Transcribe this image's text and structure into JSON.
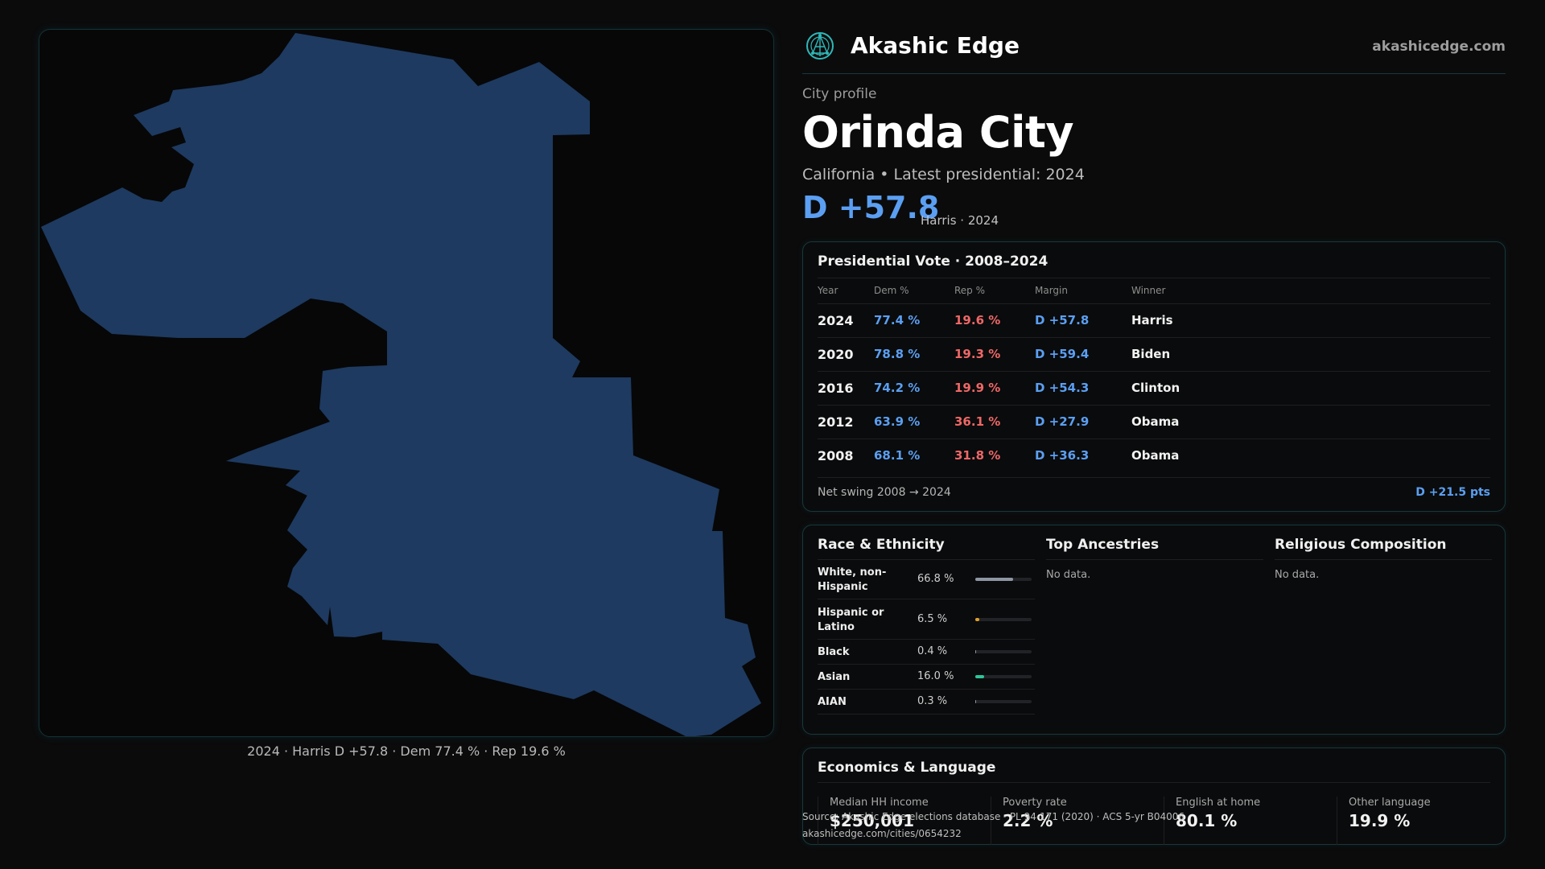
{
  "map": {
    "caption": "2024 · Harris D +57.8 · Dem 77.4 % · Rep 19.6 %",
    "fill_color": "#1e3a60"
  },
  "brand": {
    "name": "Akashic Edge",
    "url": "akashicedge.com",
    "logo_icon": "globe-network-icon"
  },
  "header": {
    "eyebrow": "City profile",
    "title": "Orinda City",
    "subline": "California • Latest presidential: 2024",
    "margin": "D +57.8",
    "margin_note": "Harris · 2024"
  },
  "vote": {
    "title": "Presidential Vote · 2008–2024",
    "columns": [
      "Year",
      "Dem %",
      "Rep %",
      "Margin",
      "Winner"
    ],
    "rows": [
      {
        "year": "2024",
        "dem": "77.4 %",
        "rep": "19.6 %",
        "margin": "D +57.8",
        "winner": "Harris"
      },
      {
        "year": "2020",
        "dem": "78.8 %",
        "rep": "19.3 %",
        "margin": "D +59.4",
        "winner": "Biden"
      },
      {
        "year": "2016",
        "dem": "74.2 %",
        "rep": "19.9 %",
        "margin": "D +54.3",
        "winner": "Clinton"
      },
      {
        "year": "2012",
        "dem": "63.9 %",
        "rep": "36.1 %",
        "margin": "D +27.9",
        "winner": "Obama"
      },
      {
        "year": "2008",
        "dem": "68.1 %",
        "rep": "31.8 %",
        "margin": "D +36.3",
        "winner": "Obama"
      }
    ],
    "swing_label": "Net swing 2008 → 2024",
    "swing_value": "D +21.5 pts"
  },
  "race": {
    "title": "Race & Ethnicity",
    "rows": [
      {
        "label": "White, non-Hispanic",
        "value": "66.8 %",
        "pct": 66.8,
        "color": "#8f96a3"
      },
      {
        "label": "Hispanic or Latino",
        "value": "6.5 %",
        "pct": 6.5,
        "color": "#e0a02a"
      },
      {
        "label": "Black",
        "value": "0.4 %",
        "pct": 0.4,
        "color": "#8f96a3"
      },
      {
        "label": "Asian",
        "value": "16.0 %",
        "pct": 16.0,
        "color": "#2fc49a"
      },
      {
        "label": "AIAN",
        "value": "0.3 %",
        "pct": 0.3,
        "color": "#8f96a3"
      }
    ]
  },
  "ancestries": {
    "title": "Top Ancestries",
    "empty": "No data."
  },
  "religion": {
    "title": "Religious Composition",
    "empty": "No data."
  },
  "economics": {
    "title": "Economics & Language",
    "stats": [
      {
        "label": "Median HH income",
        "value": "$250,001"
      },
      {
        "label": "Poverty rate",
        "value": "2.2 %"
      },
      {
        "label": "English at home",
        "value": "80.1 %"
      },
      {
        "label": "Other language",
        "value": "19.9 %"
      }
    ]
  },
  "source": {
    "line1": "Source: Akashic Edge elections database · PL 94-171 (2020) · ACS 5-yr B04006",
    "line2": "akashicedge.com/cities/0654232"
  }
}
